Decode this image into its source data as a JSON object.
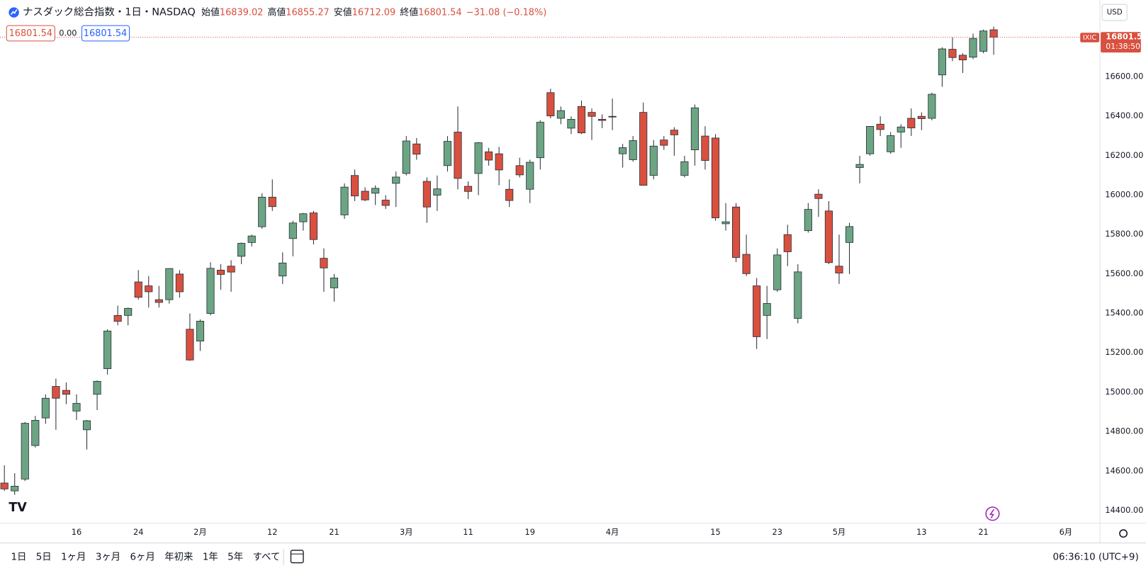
{
  "header": {
    "title": "ナスダック総合指数・1日・NASDAQ",
    "open_label": "始値",
    "high_label": "高値",
    "low_label": "安値",
    "close_label": "終値",
    "change": "−31.08 (−0.18%)",
    "bid": "16801.54",
    "spread": "0.00",
    "ask": "16801.54",
    "currency": "USD"
  },
  "chart_data": {
    "type": "candlestick",
    "symbol": "IXIC",
    "countdown": "01:38:50",
    "up_color": "#6ba583",
    "down_color": "#d9503f",
    "border_color": "#2a2e39",
    "grid": false,
    "categories": [
      null,
      null,
      null,
      null,
      null,
      null,
      null,
      "16",
      null,
      null,
      null,
      null,
      null,
      "24",
      null,
      null,
      null,
      null,
      null,
      "2月",
      null,
      null,
      null,
      null,
      null,
      null,
      "12",
      null,
      null,
      null,
      null,
      null,
      "21",
      null,
      null,
      null,
      null,
      null,
      null,
      "3月",
      null,
      null,
      null,
      null,
      null,
      "11",
      null,
      null,
      null,
      null,
      null,
      "19",
      null,
      null,
      null,
      null,
      null,
      null,
      null,
      "4月",
      null,
      null,
      null,
      null,
      null,
      null,
      null,
      null,
      null,
      "15",
      null,
      null,
      null,
      null,
      null,
      "23",
      null,
      null,
      null,
      null,
      null,
      "5月",
      null,
      null,
      null,
      null,
      null,
      null,
      null,
      "13",
      null,
      null,
      null,
      null,
      null,
      "21",
      null,
      null,
      null,
      null,
      null,
      null,
      null,
      "6月"
    ],
    "open": [
      14540,
      14500,
      14560,
      14730,
      14870,
      15030,
      15010,
      14905,
      14810,
      14990,
      15120,
      15390,
      15390,
      15560,
      15540,
      15470,
      15470,
      15600,
      15320,
      15260,
      15400,
      15620,
      15640,
      15690,
      15760,
      15840,
      15990,
      15590,
      15780,
      15865,
      15910,
      15680,
      15530,
      15900,
      16100,
      16020,
      16010,
      15975,
      16060,
      16110,
      16260,
      16070,
      16000,
      16150,
      16320,
      16045,
      16110,
      16220,
      16210,
      16030,
      16150,
      16030,
      16190,
      16520,
      16390,
      16340,
      16450,
      16420,
      16385,
      16400,
      16210,
      16180,
      16420,
      16100,
      16280,
      16330,
      16100,
      16230,
      16300,
      16290,
      15855,
      15940,
      15700,
      15540,
      15390,
      15520,
      15800,
      15375,
      15820,
      16005,
      15920,
      15640,
      15760,
      16140,
      16210,
      16360,
      16220,
      16320,
      16390,
      16400,
      16390,
      16610,
      16740,
      16710,
      16700,
      16730,
      16839.02,
      null,
      null,
      null,
      null,
      null,
      null,
      null
    ],
    "high": [
      14630,
      14590,
      14850,
      14880,
      14990,
      15070,
      15050,
      14990,
      14860,
      15060,
      15320,
      15440,
      15430,
      15620,
      15590,
      15540,
      15630,
      15620,
      15400,
      15370,
      15660,
      15650,
      15670,
      15760,
      15800,
      16010,
      16080,
      15710,
      15870,
      15910,
      15920,
      15730,
      15600,
      16060,
      16130,
      16040,
      16050,
      16000,
      16120,
      16300,
      16290,
      16090,
      16100,
      16300,
      16450,
      16070,
      16270,
      16240,
      16245,
      16080,
      16190,
      16180,
      16380,
      16540,
      16450,
      16400,
      16480,
      16440,
      16410,
      16490,
      16260,
      16300,
      16470,
      16280,
      16300,
      16345,
      16200,
      16460,
      16350,
      16310,
      15960,
      15960,
      15800,
      15580,
      15540,
      15730,
      15850,
      15650,
      15960,
      16030,
      15970,
      15800,
      15860,
      16200,
      16350,
      16400,
      16320,
      16360,
      16440,
      16420,
      16520,
      16750,
      16800,
      16720,
      16820,
      16840,
      16855.27,
      null,
      null,
      null,
      null,
      null,
      null,
      null
    ],
    "low": [
      14500,
      14480,
      14550,
      14720,
      14840,
      14810,
      14940,
      14860,
      14710,
      14910,
      15090,
      15340,
      15340,
      15470,
      15430,
      15430,
      15450,
      15480,
      15160,
      15210,
      15390,
      15520,
      15510,
      15650,
      15740,
      15830,
      15920,
      15550,
      15690,
      15820,
      15750,
      15510,
      15460,
      15880,
      15970,
      15970,
      15950,
      15930,
      15940,
      16100,
      16180,
      15860,
      15920,
      16120,
      16030,
      15980,
      16000,
      16150,
      16050,
      15940,
      16090,
      15960,
      16130,
      16390,
      16360,
      16310,
      16310,
      16280,
      16340,
      16330,
      16140,
      16170,
      16050,
      16080,
      16230,
      16200,
      16090,
      16150,
      16130,
      15870,
      15820,
      15660,
      15590,
      15220,
      15270,
      15510,
      15640,
      15350,
      15810,
      15890,
      15650,
      15550,
      15600,
      16060,
      16200,
      16300,
      16210,
      16240,
      16300,
      16330,
      16380,
      16550,
      16680,
      16620,
      16690,
      16720,
      16712.09,
      null,
      null,
      null,
      null,
      null,
      null,
      null
    ],
    "close": [
      14510,
      14524,
      14843,
      14858,
      14970,
      14970,
      14990,
      14944,
      14856,
      15056,
      15311,
      15360,
      15426,
      15482,
      15510,
      15456,
      15628,
      15510,
      15164,
      15361,
      15629,
      15598,
      15610,
      15756,
      15793,
      15990,
      15942,
      15656,
      15859,
      15906,
      15775,
      15631,
      15580,
      16041,
      15996,
      15976,
      16035,
      15948,
      16092,
      16275,
      16208,
      15940,
      16032,
      16273,
      16085,
      16019,
      16266,
      16178,
      16128,
      15973,
      16103,
      16167,
      16370,
      16402,
      16429,
      16385,
      16316,
      16400,
      16379,
      16397,
      16241,
      16277,
      16050,
      16249,
      16253,
      16306,
      16170,
      16443,
      16176,
      15885,
      15865,
      15684,
      15602,
      15282,
      15451,
      15697,
      15713,
      15611,
      15928,
      15983,
      15658,
      15605,
      15841,
      16156,
      16349,
      16333,
      16302,
      16346,
      16341,
      16388,
      16512,
      16742,
      16698,
      16686,
      16795,
      16833,
      16801.54,
      null,
      null,
      null,
      null,
      null,
      null,
      null
    ],
    "ylim": [
      14336,
      16990
    ],
    "yticks": [
      {
        "value": 14400,
        "label": "14400.00"
      },
      {
        "value": 14600,
        "label": "14600.00"
      },
      {
        "value": 14800,
        "label": "14800.00"
      },
      {
        "value": 15000,
        "label": "15000.00"
      },
      {
        "value": 15200,
        "label": "15200.00"
      },
      {
        "value": 15400,
        "label": "15400.00"
      },
      {
        "value": 15600,
        "label": "15600.00"
      },
      {
        "value": 15800,
        "label": "15800.00"
      },
      {
        "value": 16000,
        "label": "16000.00"
      },
      {
        "value": 16200,
        "label": "16200.00"
      },
      {
        "value": 16400,
        "label": "16400.00"
      },
      {
        "value": 16600,
        "label": "16600.00"
      }
    ]
  },
  "toolbar": {
    "ranges": [
      "1日",
      "5日",
      "1ヶ月",
      "3ヶ月",
      "6ヶ月",
      "年初来",
      "1年",
      "5年",
      "すべて"
    ],
    "clock": "06:36:10 (UTC+9)"
  }
}
